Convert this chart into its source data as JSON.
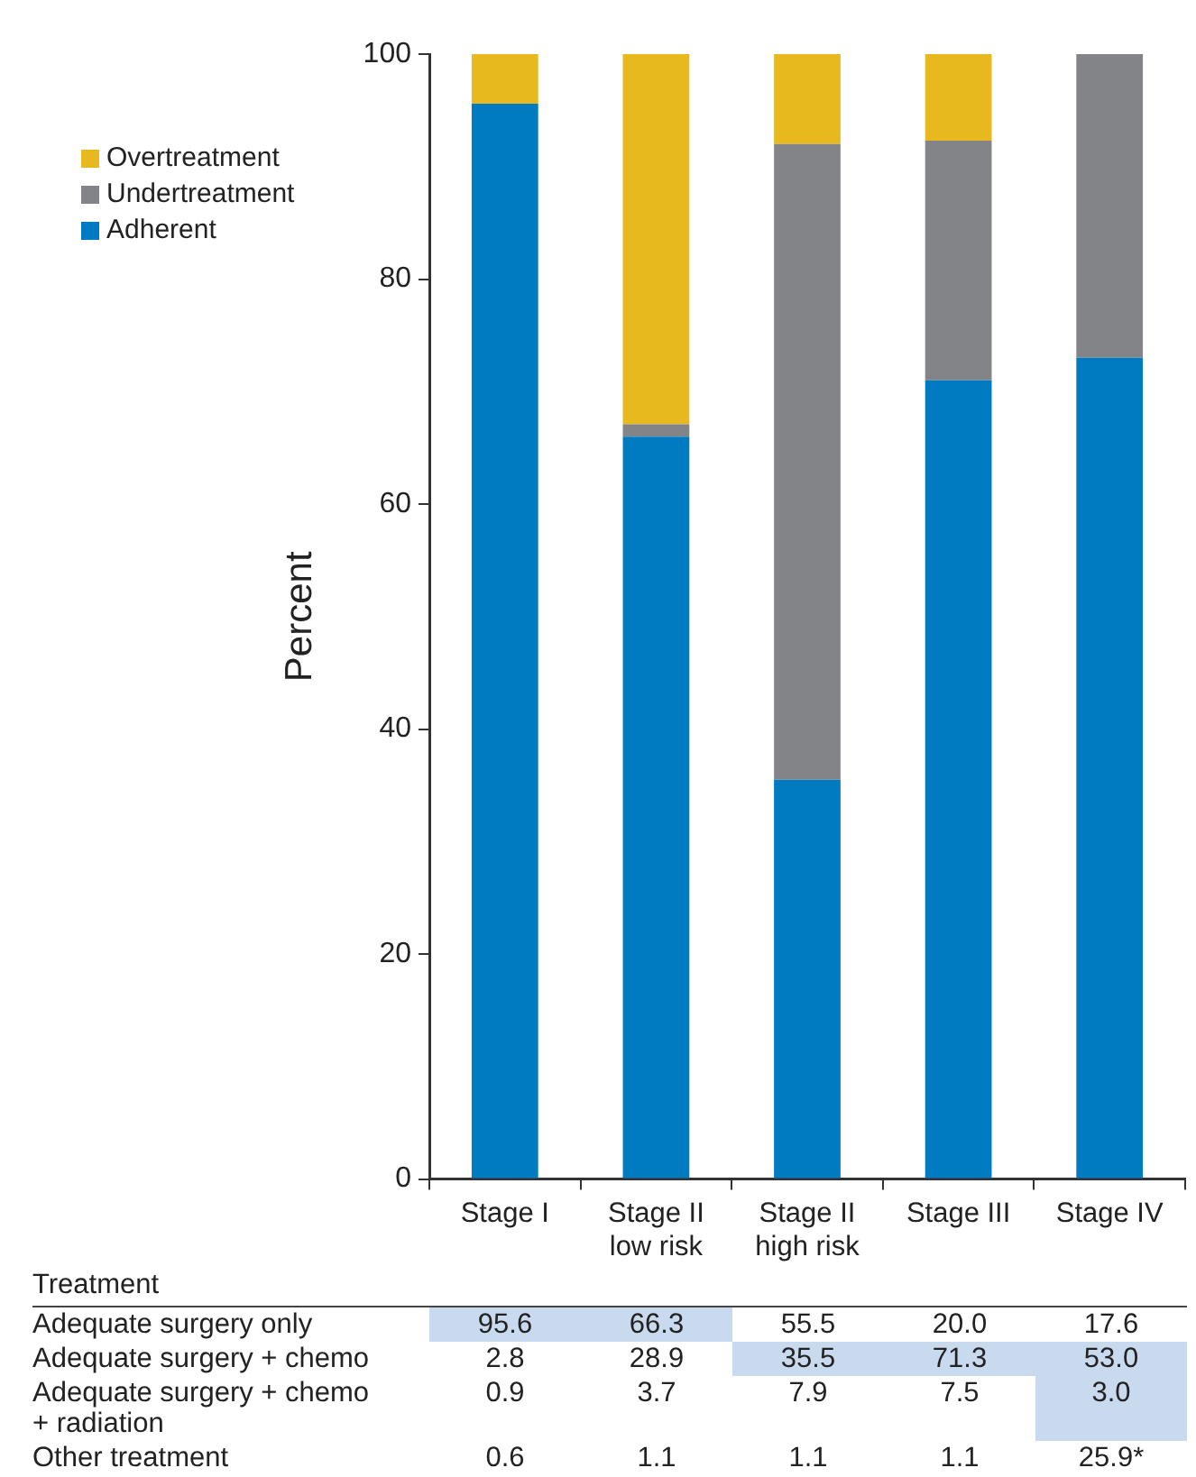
{
  "chart_data": {
    "type": "bar",
    "stacked": true,
    "ylabel": "Percent",
    "legend": "left",
    "categories": [
      "Stage I",
      "Stage II low risk",
      "Stage II high risk",
      "Stage III",
      "Stage IV"
    ],
    "ylim": [
      0,
      100
    ],
    "yticks": [
      0,
      20,
      40,
      60,
      80,
      100
    ],
    "grid": false,
    "series": [
      {
        "name": "Adherent",
        "color": "#007bc2",
        "values": [
          95.6,
          66.0,
          35.5,
          71.0,
          73.0
        ]
      },
      {
        "name": "Undertreatment",
        "color": "#838487",
        "values": [
          0,
          1.1,
          56.5,
          21.3,
          27.0
        ]
      },
      {
        "name": "Overtreatment",
        "color": "#e7b91e",
        "values": [
          4.4,
          32.9,
          8.0,
          7.7,
          0
        ]
      }
    ],
    "annotations": [
      "Treatment",
      "Adequate surgery only",
      "95.6",
      "66.3",
      "55.5",
      "20.0",
      "17.6",
      "Adequate surgery + chemo",
      "2.8",
      "28.9",
      "35.5",
      "71.3",
      "53.0",
      "Adequate surgery + chemo + radiation",
      "0.9",
      "3.7",
      "7.9",
      "7.5",
      "3.0",
      "Other treatment",
      "0.6",
      "1.1",
      "1.1",
      "1.1",
      "25.9*"
    ]
  }
}
